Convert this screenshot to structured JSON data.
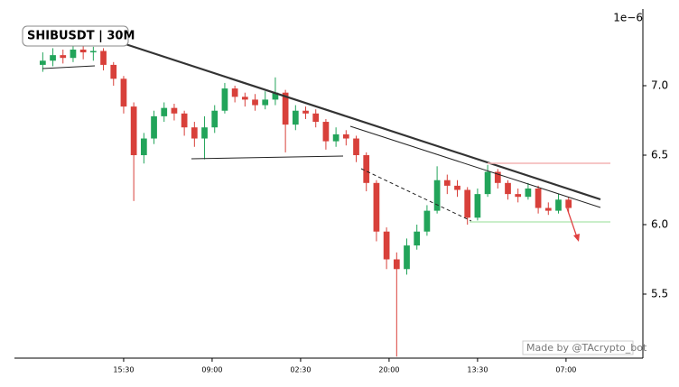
{
  "chart_data": {
    "type": "candlestick",
    "title": "SHIBUSDT | 30M",
    "offset_label": "1e−6",
    "watermark": "Made by @TAcrypto_bot",
    "up_color": "#22a45a",
    "down_color": "#d8403a",
    "x": [
      -16,
      -14,
      -12,
      -10,
      -8,
      -6,
      -4,
      -2,
      0,
      2,
      4,
      6,
      8,
      10,
      12,
      14,
      16,
      18,
      20,
      22,
      24,
      26,
      28,
      30,
      32,
      34,
      36,
      38,
      40,
      42,
      44,
      46,
      48,
      50,
      52,
      54,
      56,
      58,
      60,
      62,
      64,
      66,
      68,
      70,
      72,
      74,
      76,
      78,
      80,
      82,
      84,
      86,
      88
    ],
    "open": [
      7.15,
      7.18,
      7.22,
      7.2,
      7.26,
      7.24,
      7.25,
      7.15,
      7.05,
      6.85,
      6.5,
      6.62,
      6.78,
      6.84,
      6.8,
      6.7,
      6.62,
      6.7,
      6.82,
      6.98,
      6.92,
      6.9,
      6.86,
      6.9,
      6.95,
      6.72,
      6.82,
      6.8,
      6.74,
      6.6,
      6.65,
      6.62,
      6.5,
      6.3,
      5.95,
      5.75,
      5.68,
      5.85,
      5.95,
      6.1,
      6.32,
      6.28,
      6.25,
      6.05,
      6.22,
      6.38,
      6.3,
      6.22,
      6.2,
      6.26,
      6.12,
      6.1,
      6.18
    ],
    "high": [
      7.24,
      7.27,
      7.26,
      7.3,
      7.3,
      7.28,
      7.27,
      7.17,
      7.07,
      6.88,
      6.66,
      6.82,
      6.88,
      6.87,
      6.82,
      6.74,
      6.78,
      6.86,
      7.02,
      7.0,
      6.95,
      6.94,
      6.96,
      7.06,
      6.97,
      6.86,
      6.85,
      6.83,
      6.76,
      6.7,
      6.68,
      6.64,
      6.52,
      6.32,
      5.98,
      5.8,
      5.9,
      6.0,
      6.14,
      6.42,
      6.36,
      6.32,
      6.27,
      6.26,
      6.43,
      6.4,
      6.32,
      6.26,
      6.3,
      6.28,
      6.16,
      6.22,
      6.2
    ],
    "low": [
      7.1,
      7.14,
      7.16,
      7.17,
      7.19,
      7.18,
      7.11,
      7.0,
      6.8,
      6.17,
      6.44,
      6.58,
      6.74,
      6.75,
      6.64,
      6.56,
      6.47,
      6.66,
      6.8,
      6.88,
      6.85,
      6.82,
      6.83,
      6.86,
      6.52,
      6.68,
      6.76,
      6.7,
      6.54,
      6.56,
      6.57,
      6.45,
      6.24,
      5.88,
      5.68,
      5.05,
      5.64,
      5.82,
      5.92,
      6.08,
      6.22,
      6.2,
      6.0,
      6.03,
      6.2,
      6.26,
      6.18,
      6.16,
      6.18,
      6.08,
      6.07,
      6.08,
      6.09
    ],
    "close": [
      7.18,
      7.22,
      7.2,
      7.26,
      7.24,
      7.25,
      7.15,
      7.05,
      6.85,
      6.5,
      6.62,
      6.78,
      6.84,
      6.8,
      6.7,
      6.62,
      6.7,
      6.82,
      6.98,
      6.92,
      6.9,
      6.86,
      6.9,
      6.95,
      6.72,
      6.82,
      6.8,
      6.74,
      6.6,
      6.65,
      6.62,
      6.5,
      6.3,
      5.95,
      5.75,
      5.68,
      5.85,
      5.95,
      6.1,
      6.32,
      6.28,
      6.25,
      6.05,
      6.22,
      6.38,
      6.3,
      6.22,
      6.2,
      6.26,
      6.12,
      6.1,
      6.18,
      6.12
    ],
    "xlim": [
      -21.6,
      102.7
    ],
    "xticks": [
      {
        "value": 0,
        "label": "15:30"
      },
      {
        "value": 17.5,
        "label": "09:00"
      },
      {
        "value": 35,
        "label": "02:30"
      },
      {
        "value": 52.5,
        "label": "20:00"
      },
      {
        "value": 70,
        "label": "13:30"
      },
      {
        "value": 87.5,
        "label": "07:00"
      }
    ],
    "ylim": [
      5.039,
      7.552
    ],
    "yticks": [
      5.5,
      {
        "value": 6,
        "label": "6.0"
      },
      6.5,
      {
        "value": 7,
        "label": "7.0"
      }
    ]
  }
}
